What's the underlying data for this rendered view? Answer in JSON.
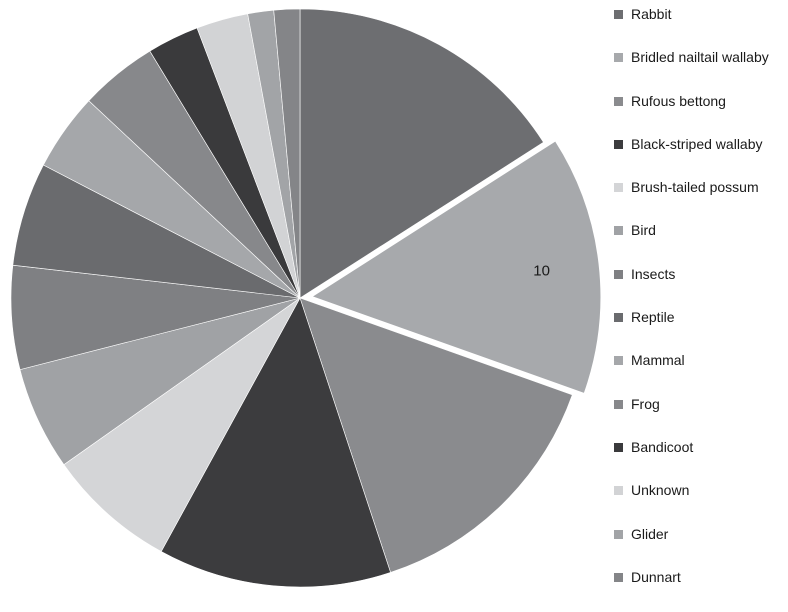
{
  "chart_data": {
    "type": "pie",
    "title": "",
    "legend_position": "right",
    "start_angle_deg": 0,
    "direction": "clockwise",
    "slices": [
      {
        "label": "Rabbit",
        "value": 11,
        "color": "#6d6e71"
      },
      {
        "label": "Bridled nailtail wallaby",
        "value": 10,
        "color": "#a7a9ac",
        "data_label": "10",
        "exploded": true
      },
      {
        "label": "Rufous bettong",
        "value": 10,
        "color": "#8a8b8e"
      },
      {
        "label": "Black-striped wallaby",
        "value": 9,
        "color": "#3c3c3e"
      },
      {
        "label": "Brush-tailed possum",
        "value": 5,
        "color": "#d4d5d7"
      },
      {
        "label": "Bird",
        "value": 4,
        "color": "#a0a2a5"
      },
      {
        "label": "Insects",
        "value": 4,
        "color": "#7f8083"
      },
      {
        "label": "Reptile",
        "value": 4,
        "color": "#6a6b6e"
      },
      {
        "label": "Mammal",
        "value": 3,
        "color": "#a5a7aa"
      },
      {
        "label": "Frog",
        "value": 3,
        "color": "#87888b"
      },
      {
        "label": "Bandicoot",
        "value": 2,
        "color": "#3a3a3c"
      },
      {
        "label": "Unknown",
        "value": 2,
        "color": "#d2d3d5"
      },
      {
        "label": "Glider",
        "value": 1,
        "color": "#a2a4a7"
      },
      {
        "label": "Dunnart",
        "value": 1,
        "color": "#848588"
      }
    ]
  }
}
